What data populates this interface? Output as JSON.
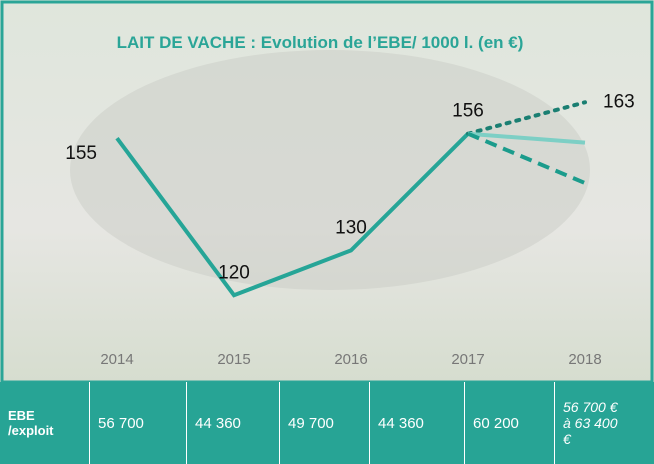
{
  "chart_data": {
    "type": "line",
    "title": "LAIT DE VACHE : Evolution de l’EBE/ 1000 l. (en €)",
    "categories": [
      "2014",
      "2015",
      "2016",
      "2017",
      "2018"
    ],
    "ylim": [
      100,
      180
    ],
    "series": [
      {
        "color": "#26a597",
        "dash": "solid",
        "values": [
          155,
          120,
          130,
          156,
          null
        ]
      },
      {
        "color": "#1a7f72",
        "dash": "dotted",
        "values": [
          null,
          null,
          null,
          156,
          163
        ]
      },
      {
        "color": "#7dcfc5",
        "dash": "solid",
        "values": [
          null,
          null,
          null,
          156,
          154
        ]
      },
      {
        "color": "#1b9c8c",
        "dash": "dashed",
        "values": [
          null,
          null,
          null,
          156,
          145
        ]
      }
    ]
  },
  "table": {
    "rows": [
      [
        "EBE /exploit",
        "56 700",
        "44 360",
        "49 700",
        "44 360",
        "60 200",
        "56 700 € à 63 400 €"
      ]
    ]
  }
}
